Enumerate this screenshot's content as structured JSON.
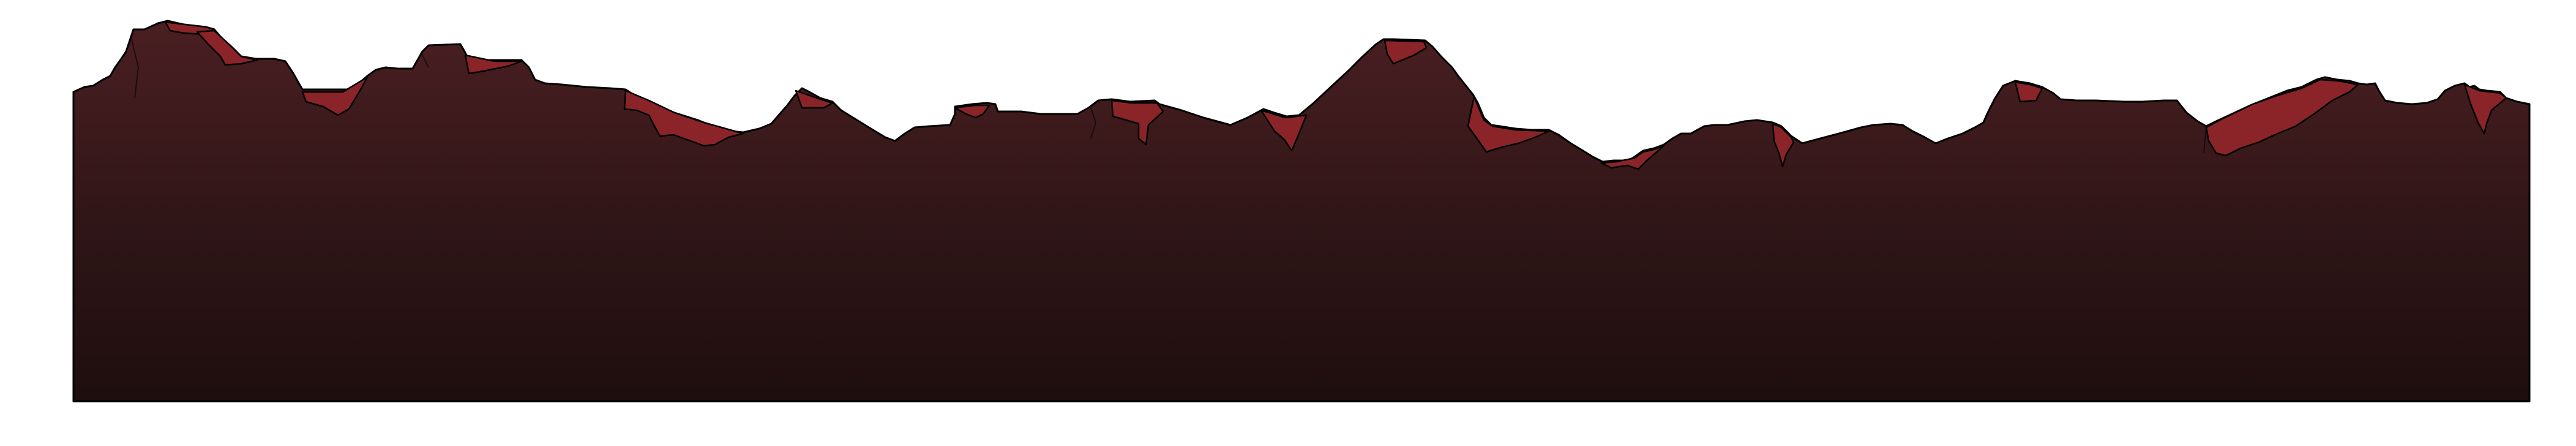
{
  "scene": {
    "kind": "side-scrolling game terrain strip",
    "palette": {
      "background": "#ffffff",
      "rock_top": "#4a1f22",
      "rock_bottom": "#1e0e0e",
      "highlight": "#8b2428",
      "outline": "#000000"
    }
  }
}
